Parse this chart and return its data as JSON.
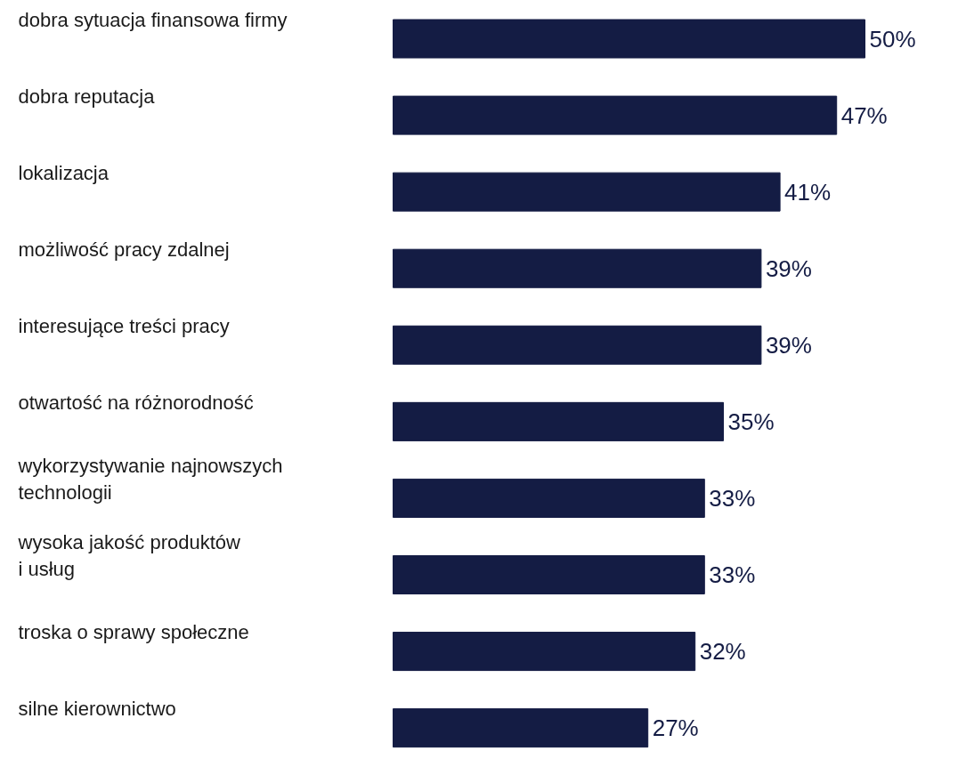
{
  "chart_data": {
    "type": "bar",
    "orientation": "horizontal",
    "categories": [
      "dobra sytuacja finansowa firmy",
      "dobra reputacja",
      "lokalizacja",
      "możliwość pracy zdalnej",
      "interesujące treści pracy",
      "otwartość na różnorodność",
      "wykorzystywanie najnowszych\ntechnologii",
      "wysoka jakość produktów\ni usług",
      "troska o sprawy społeczne",
      "silne kierownictwo"
    ],
    "values": [
      50,
      47,
      41,
      39,
      39,
      35,
      33,
      33,
      32,
      27
    ],
    "value_labels": [
      "50%",
      "47%",
      "41%",
      "39%",
      "39%",
      "35%",
      "33%",
      "33%",
      "32%",
      "27%"
    ],
    "color": "#141c44",
    "grid": false
  }
}
